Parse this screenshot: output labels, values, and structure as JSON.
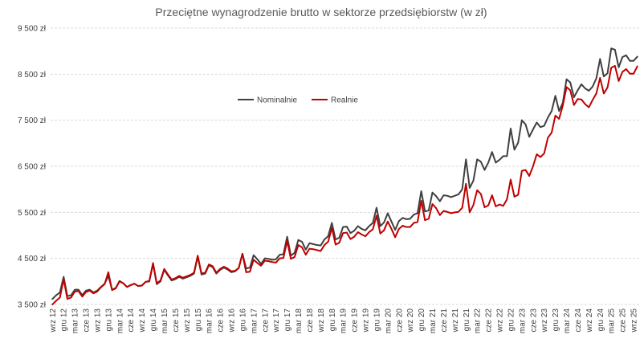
{
  "chart_data": {
    "type": "line",
    "title": "Przeciętne wynagrodzenie brutto w sektorze przedsiębiorstw (w zł)",
    "xlabel": "",
    "ylabel": "",
    "ylim": [
      3500,
      9500
    ],
    "yticks": [
      3500,
      4500,
      5500,
      6500,
      7500,
      8500,
      9500
    ],
    "ytick_labels": [
      "3 500 zł",
      "4 500 zł",
      "5 500 zł",
      "6 500 zł",
      "7 500 zł",
      "8 500 zł",
      "9 500 zł"
    ],
    "grid": true,
    "legend_position": "center-left",
    "x_tick_labels": [
      "wrz 12",
      "gru 12",
      "mar 13",
      "cze 13",
      "wrz 13",
      "gru 13",
      "mar 14",
      "cze 14",
      "wrz 14",
      "gru 14",
      "mar 15",
      "cze 15",
      "wrz 15",
      "gru 15",
      "mar 16",
      "cze 16",
      "wrz 16",
      "gru 16",
      "mar 17",
      "cze 17",
      "wrz 17",
      "gru 17",
      "mar 18",
      "cze 18",
      "wrz 18",
      "gru 18",
      "mar 19",
      "cze 19",
      "wrz 19",
      "gru 19",
      "mar 20",
      "cze 20",
      "wrz 20",
      "gru 20",
      "mar 21",
      "cze 21",
      "wrz 21",
      "gru 21",
      "mar 22",
      "cze 22",
      "wrz 22",
      "gru 22",
      "mar 23",
      "cze 23",
      "wrz 23",
      "gru 23",
      "mar 24",
      "cze 24",
      "wrz 24",
      "gru 24",
      "mar 25",
      "cze 25",
      "wrz 25"
    ],
    "series": [
      {
        "name": "Nominalnie",
        "color": "#404040",
        "values": [
          3620,
          3700,
          3760,
          4100,
          3680,
          3700,
          3820,
          3820,
          3700,
          3800,
          3820,
          3760,
          3800,
          3880,
          3950,
          4120,
          3820,
          3860,
          4010,
          3960,
          3880,
          3920,
          3950,
          3900,
          3910,
          3990,
          4000,
          4380,
          3940,
          4000,
          4250,
          4130,
          4020,
          4050,
          4100,
          4060,
          4090,
          4120,
          4170,
          4540,
          4150,
          4170,
          4350,
          4310,
          4170,
          4250,
          4300,
          4260,
          4200,
          4220,
          4290,
          4600,
          4280,
          4300,
          4570,
          4480,
          4380,
          4500,
          4490,
          4470,
          4480,
          4580,
          4590,
          4970,
          4560,
          4620,
          4900,
          4860,
          4690,
          4830,
          4810,
          4790,
          4780,
          4910,
          4980,
          5270,
          4910,
          4950,
          5180,
          5190,
          5050,
          5100,
          5200,
          5140,
          5110,
          5200,
          5270,
          5600,
          5200,
          5280,
          5480,
          5300,
          5120,
          5310,
          5380,
          5350,
          5360,
          5450,
          5480,
          5960,
          5520,
          5540,
          5930,
          5850,
          5740,
          5870,
          5860,
          5830,
          5860,
          5890,
          6000,
          6650,
          6030,
          6190,
          6650,
          6600,
          6420,
          6580,
          6810,
          6580,
          6640,
          6720,
          6720,
          7320,
          6860,
          7010,
          7500,
          7410,
          7140,
          7300,
          7450,
          7350,
          7380,
          7560,
          7700,
          8030,
          7700,
          7880,
          8390,
          8320,
          8000,
          8150,
          8280,
          8190,
          8140,
          8230,
          8410,
          8830,
          8450,
          8520,
          9060,
          9030,
          8650,
          8870,
          8910,
          8790,
          8790,
          8880
        ]
      },
      {
        "name": "Realnie",
        "color": "#c00000",
        "values": [
          3500,
          3580,
          3650,
          4050,
          3620,
          3650,
          3780,
          3790,
          3670,
          3770,
          3800,
          3740,
          3780,
          3870,
          3940,
          4200,
          3810,
          3850,
          4000,
          3960,
          3880,
          3920,
          3950,
          3900,
          3910,
          3990,
          4010,
          4400,
          3960,
          4020,
          4270,
          4150,
          4040,
          4070,
          4120,
          4080,
          4110,
          4140,
          4190,
          4560,
          4170,
          4190,
          4370,
          4330,
          4190,
          4270,
          4320,
          4280,
          4220,
          4230,
          4290,
          4600,
          4200,
          4210,
          4470,
          4400,
          4340,
          4450,
          4440,
          4420,
          4410,
          4500,
          4510,
          4880,
          4490,
          4530,
          4790,
          4740,
          4580,
          4710,
          4700,
          4680,
          4660,
          4790,
          4860,
          5160,
          4800,
          4840,
          5050,
          5060,
          4920,
          4970,
          5070,
          5020,
          4980,
          5070,
          5130,
          5430,
          5040,
          5110,
          5300,
          5140,
          4960,
          5140,
          5210,
          5180,
          5180,
          5270,
          5290,
          5750,
          5330,
          5360,
          5680,
          5590,
          5440,
          5530,
          5510,
          5480,
          5500,
          5510,
          5600,
          6120,
          5500,
          5660,
          5980,
          5900,
          5610,
          5650,
          5870,
          5630,
          5670,
          5640,
          5780,
          6210,
          5840,
          5880,
          6400,
          6420,
          6290,
          6500,
          6760,
          6700,
          6780,
          7120,
          7230,
          7600,
          7530,
          7820,
          8220,
          8150,
          7830,
          7960,
          7950,
          7850,
          7780,
          7940,
          8080,
          8420,
          8080,
          8210,
          8640,
          8680,
          8350,
          8550,
          8610,
          8510,
          8510,
          8670
        ]
      }
    ]
  }
}
